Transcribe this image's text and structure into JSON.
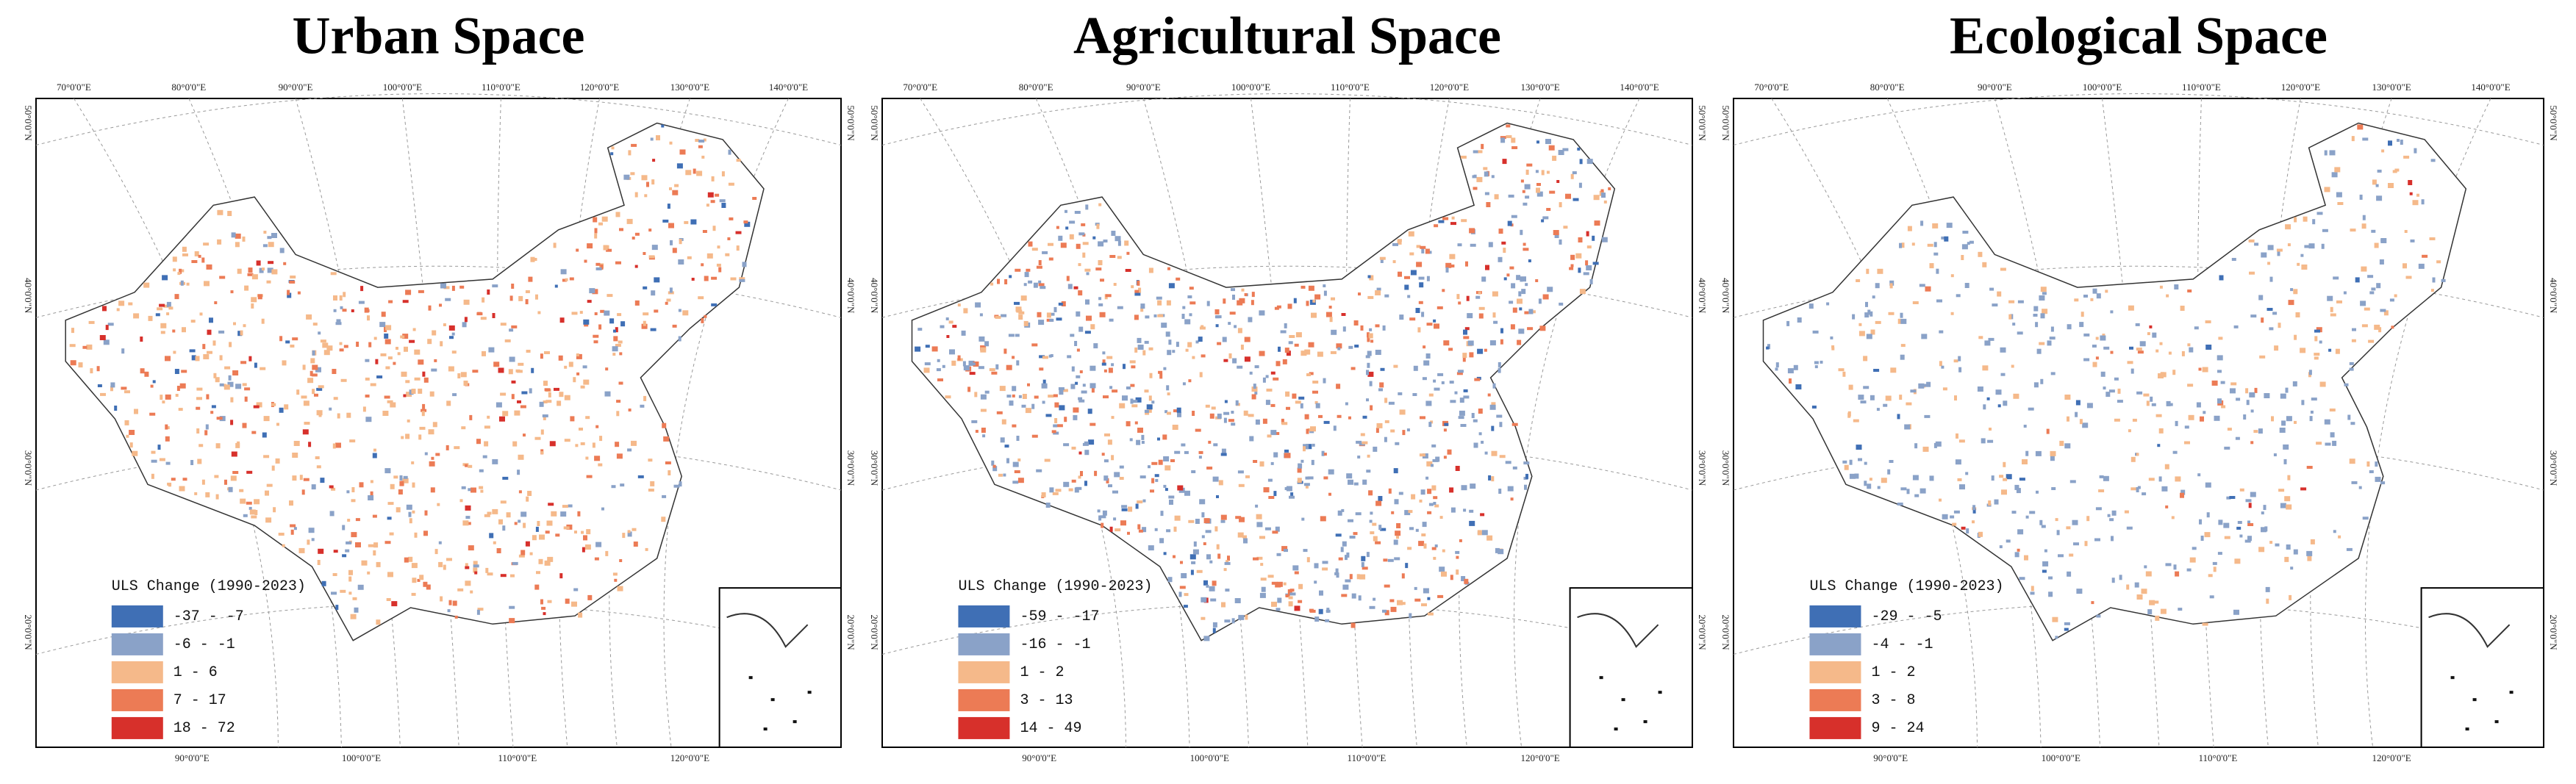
{
  "graticule": {
    "top": [
      "70°0'0\"E",
      "80°0'0\"E",
      "90°0'0\"E",
      "100°0'0\"E",
      "110°0'0\"E",
      "120°0'0\"E",
      "130°0'0\"E",
      "140°0'0\"E"
    ],
    "bottom": [
      "90°0'0\"E",
      "100°0'0\"E",
      "110°0'0\"E",
      "120°0'0\"E"
    ],
    "side": [
      "50°0'0\"N",
      "40°0'0\"N",
      "30°0'0\"N",
      "20°0'0\"N"
    ]
  },
  "panels": [
    {
      "title": "Urban Space",
      "legend": {
        "title": "ULS Change (1990-2023)",
        "items": [
          {
            "label": "-37 - -7",
            "color": "#3f6fb5"
          },
          {
            "label": "-6 - -1",
            "color": "#8aa2c8"
          },
          {
            "label": "1 - 6",
            "color": "#f5b98a"
          },
          {
            "label": "7 - 17",
            "color": "#ec7b55"
          },
          {
            "label": "18 - 72",
            "color": "#d7302b"
          }
        ]
      }
    },
    {
      "title": "Agricultural Space",
      "legend": {
        "title": "ULS Change (1990-2023)",
        "items": [
          {
            "label": "-59 - -17",
            "color": "#3f6fb5"
          },
          {
            "label": "-16 - -1",
            "color": "#8aa2c8"
          },
          {
            "label": "1 - 2",
            "color": "#f5b98a"
          },
          {
            "label": "3 - 13",
            "color": "#ec7b55"
          },
          {
            "label": "14 - 49",
            "color": "#d7302b"
          }
        ]
      }
    },
    {
      "title": "Ecological Space",
      "legend": {
        "title": "ULS Change (1990-2023)",
        "items": [
          {
            "label": "-29 - -5",
            "color": "#3f6fb5"
          },
          {
            "label": "-4 - -1",
            "color": "#8aa2c8"
          },
          {
            "label": "1 - 2",
            "color": "#f5b98a"
          },
          {
            "label": "3 - 8",
            "color": "#ec7b55"
          },
          {
            "label": "9 - 24",
            "color": "#d7302b"
          }
        ]
      }
    }
  ]
}
